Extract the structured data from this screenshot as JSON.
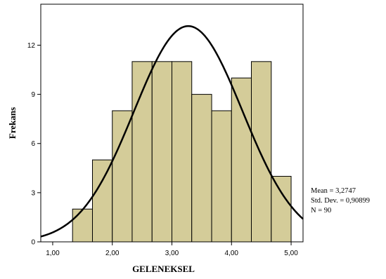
{
  "chart_data": {
    "type": "bar",
    "subtype": "histogram",
    "xlabel": "GELENEKSEL",
    "ylabel": "Frekans",
    "xlim": [
      0.8,
      5.2
    ],
    "ylim": [
      0,
      14.5
    ],
    "xticks": [
      1.0,
      2.0,
      3.0,
      4.0,
      5.0
    ],
    "xtick_labels": [
      "1,00",
      "2,00",
      "3,00",
      "4,00",
      "5,00"
    ],
    "yticks": [
      0,
      3,
      6,
      9,
      12
    ],
    "ytick_labels": [
      "0",
      "3",
      "6",
      "9",
      "12"
    ],
    "bar_color": "#d4cc99",
    "bins": [
      {
        "x0": 1.333,
        "x1": 1.667,
        "value": 2
      },
      {
        "x0": 1.667,
        "x1": 2.0,
        "value": 5
      },
      {
        "x0": 2.0,
        "x1": 2.333,
        "value": 8
      },
      {
        "x0": 2.333,
        "x1": 2.667,
        "value": 11
      },
      {
        "x0": 2.667,
        "x1": 3.0,
        "value": 11
      },
      {
        "x0": 3.0,
        "x1": 3.333,
        "value": 11
      },
      {
        "x0": 3.333,
        "x1": 3.667,
        "value": 9
      },
      {
        "x0": 3.667,
        "x1": 4.0,
        "value": 8
      },
      {
        "x0": 4.0,
        "x1": 4.333,
        "value": 10
      },
      {
        "x0": 4.333,
        "x1": 4.667,
        "value": 11
      },
      {
        "x0": 4.667,
        "x1": 5.0,
        "value": 4
      }
    ],
    "normal_curve": {
      "mean": 3.2747,
      "std": 0.90899,
      "n": 90,
      "bin_width": 0.3333
    },
    "grid": false
  },
  "stats": {
    "mean_label": "Mean = 3,2747",
    "std_label": "Std. Dev. = 0,90899",
    "n_label": "N = 90"
  }
}
